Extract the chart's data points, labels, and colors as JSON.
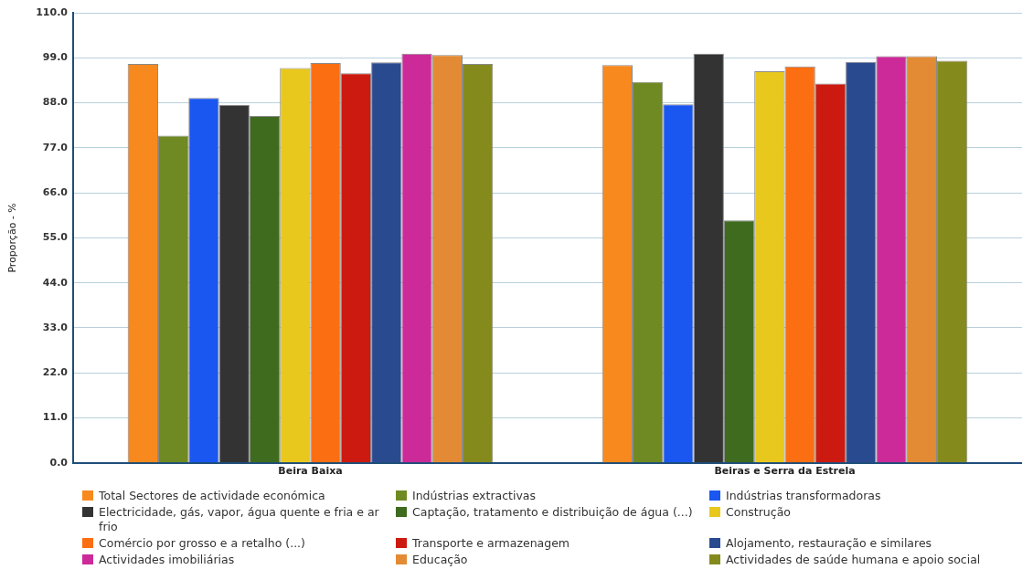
{
  "chart_data": {
    "type": "bar",
    "ylabel": "Proporção - %",
    "categories": [
      "Beira Baixa",
      "Beiras e Serra da Estrela"
    ],
    "ylim": [
      0,
      110
    ],
    "yticks": [
      {
        "value": 0,
        "label": "0.0"
      },
      {
        "value": 11,
        "label": "11.0"
      },
      {
        "value": 22,
        "label": "22.0"
      },
      {
        "value": 33,
        "label": "33.0"
      },
      {
        "value": 44,
        "label": "44.0"
      },
      {
        "value": 55,
        "label": "55.0"
      },
      {
        "value": 66,
        "label": "66.0"
      },
      {
        "value": 77,
        "label": "77.0"
      },
      {
        "value": 88,
        "label": "88.0"
      },
      {
        "value": 99,
        "label": "99.0"
      },
      {
        "value": 110,
        "label": "110.0"
      }
    ],
    "grid": "y",
    "legend": "bottom",
    "series": [
      {
        "name": "Total Sectores de actividade económica",
        "color": "#f7891e",
        "values": [
          97.5,
          97.2
        ]
      },
      {
        "name": "Indústrias extractivas",
        "color": "#6f8a22",
        "values": [
          80.0,
          93.1
        ]
      },
      {
        "name": "Indústrias transformadoras",
        "color": "#1a56f0",
        "values": [
          89.2,
          87.6
        ]
      },
      {
        "name": "Electricidade, gás, vapor, água quente e fria e ar frio",
        "color": "#333333",
        "values": [
          87.5,
          100.0
        ]
      },
      {
        "name": "Captação, tratamento e distribuição de água (...)",
        "color": "#3f6b1e",
        "values": [
          84.8,
          59.3
        ]
      },
      {
        "name": "Construção",
        "color": "#e8c81c",
        "values": [
          96.5,
          95.7
        ]
      },
      {
        "name": "Comércio por grosso e a retalho (...)",
        "color": "#fb6e12",
        "values": [
          97.7,
          96.9
        ]
      },
      {
        "name": "Transporte e armazenagem",
        "color": "#cc1a10",
        "values": [
          95.2,
          92.7
        ]
      },
      {
        "name": "Alojamento, restauração e similares",
        "color": "#2a4a90",
        "values": [
          97.9,
          98.0
        ]
      },
      {
        "name": "Actividades imobiliárias",
        "color": "#cc2a99",
        "values": [
          100.0,
          99.4
        ]
      },
      {
        "name": "Educação",
        "color": "#e38b34",
        "values": [
          99.7,
          99.4
        ]
      },
      {
        "name": "Actividades de saúde humana e apoio social",
        "color": "#858a1c",
        "values": [
          97.5,
          98.3
        ]
      }
    ]
  }
}
